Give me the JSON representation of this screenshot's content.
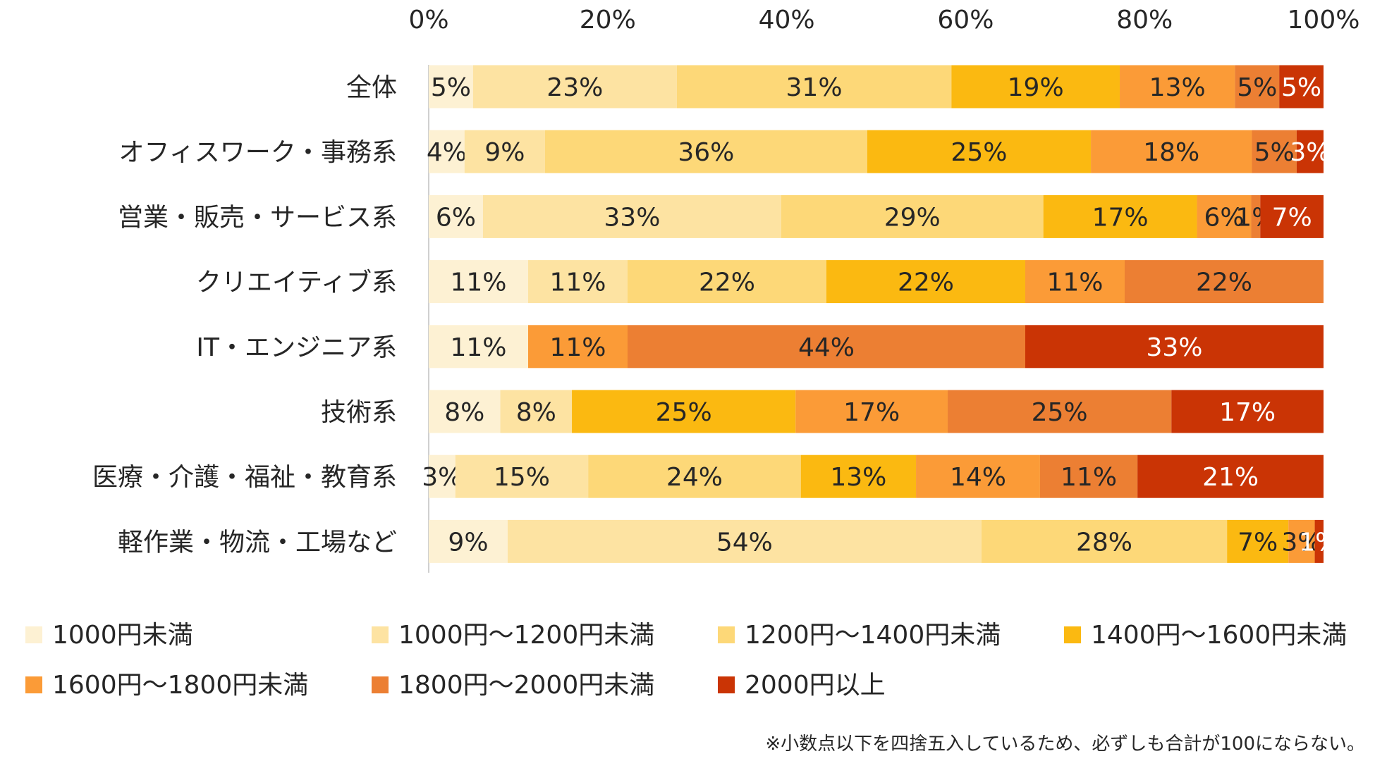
{
  "chart_data": {
    "type": "bar",
    "orientation": "horizontal",
    "stacked": "percent",
    "title": "",
    "xlabel": "",
    "ylabel": "",
    "xlim": [
      0,
      100
    ],
    "x_ticks": [
      "0%",
      "20%",
      "40%",
      "60%",
      "80%",
      "100%"
    ],
    "grid": false,
    "legend_position": "bottom",
    "categories": [
      "全体",
      "オフィスワーク・事務系",
      "営業・販売・サービス系",
      "クリエイティブ系",
      "IT・エンジニア系",
      "技術系",
      "医療・介護・福祉・教育系",
      "軽作業・物流・工場など"
    ],
    "series": [
      {
        "name": "1000円未満",
        "color": "#FDF1D3",
        "values": [
          5,
          4,
          6,
          11,
          11,
          8,
          3,
          9
        ]
      },
      {
        "name": "1000円～1200円未満",
        "color": "#FDE3A2",
        "values": [
          23,
          9,
          33,
          11,
          0,
          8,
          15,
          54
        ]
      },
      {
        "name": "1200円～1400円未満",
        "color": "#FDD878",
        "values": [
          31,
          36,
          29,
          22,
          0,
          0,
          24,
          28
        ]
      },
      {
        "name": "1400円～1600円未満",
        "color": "#FBB911",
        "values": [
          19,
          25,
          17,
          22,
          0,
          25,
          13,
          7
        ]
      },
      {
        "name": "1600円～1800円未満",
        "color": "#FB9B37",
        "values": [
          13,
          18,
          6,
          11,
          11,
          17,
          14,
          3
        ]
      },
      {
        "name": "1800円～2000円未満",
        "color": "#EC7F33",
        "values": [
          5,
          5,
          1,
          22,
          44,
          25,
          11,
          0
        ]
      },
      {
        "name": "2000円以上",
        "color": "#CA3405",
        "values": [
          5,
          3,
          7,
          0,
          33,
          17,
          21,
          1
        ]
      }
    ],
    "data_label_colors": {
      "dark": "#262626",
      "light": "#ffffff"
    }
  },
  "note": "※小数点以下を四捨五入しているため、必ずしも合計が100にならない。"
}
